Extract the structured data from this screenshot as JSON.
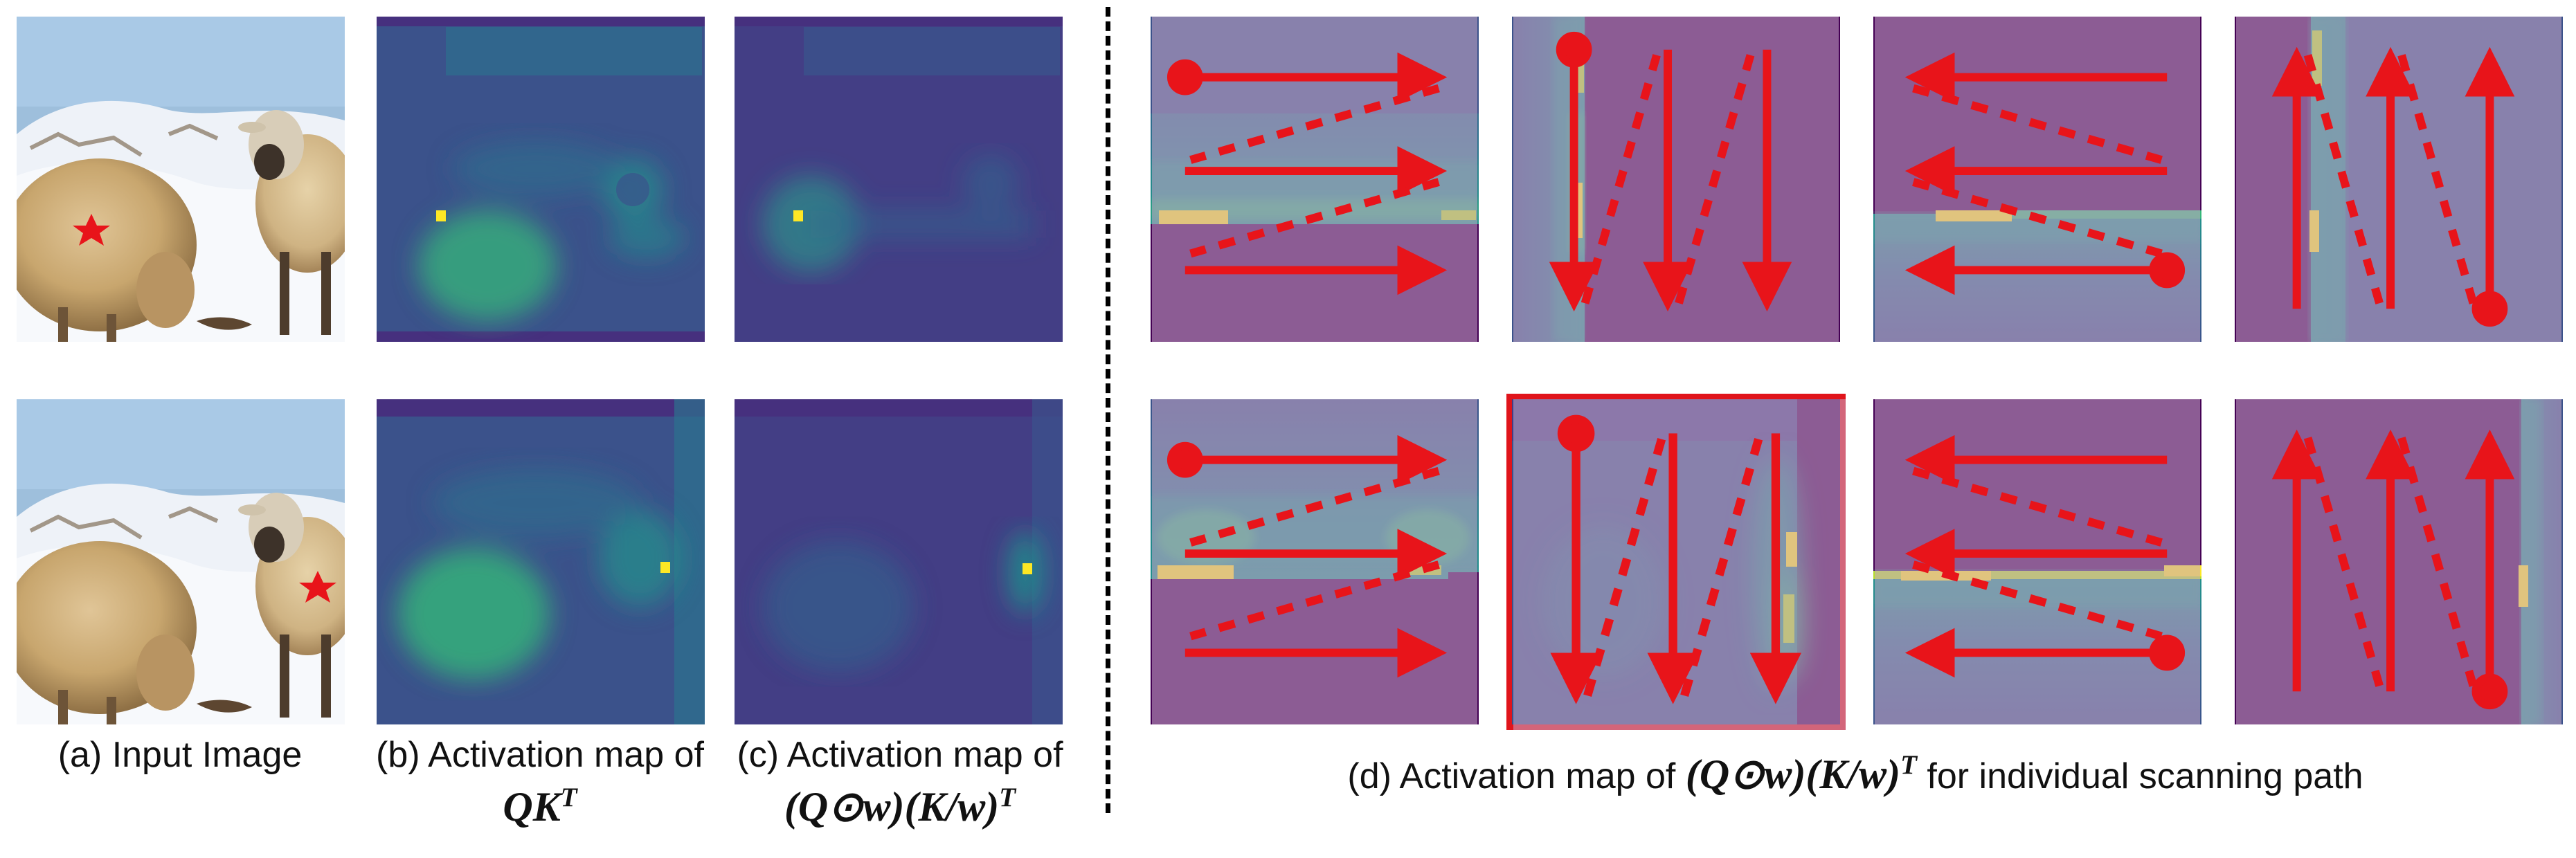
{
  "colors": {
    "viridis_bg": "#440154",
    "viridis_mid": "#31688e",
    "viridis_high": "#35b779",
    "viridis_peak": "#fde725",
    "highlight_border": "#e0141b",
    "star": "#e8141a",
    "scan_arrow": "#e8141a"
  },
  "captions": {
    "a": "(a) Input Image",
    "b_line1": "(b) Activation map of",
    "b_math": "QK^T",
    "c_line1": "(c) Activation map of",
    "c_math": "(Q⊙w)(K/w)^T",
    "d_prefix": "(d) Activation map of",
    "d_math": "(Q⊙w)(K/w)^T",
    "d_suffix": "for individual scanning path"
  },
  "scan_paths": [
    {
      "row": 1,
      "col": 1,
      "icon": "horizontal-forward-scan-icon",
      "highlighted": false
    },
    {
      "row": 1,
      "col": 2,
      "icon": "vertical-forward-scan-icon",
      "highlighted": false
    },
    {
      "row": 1,
      "col": 3,
      "icon": "horizontal-backward-scan-icon",
      "highlighted": false
    },
    {
      "row": 1,
      "col": 4,
      "icon": "vertical-backward-scan-icon",
      "highlighted": false
    },
    {
      "row": 2,
      "col": 1,
      "icon": "horizontal-forward-scan-icon",
      "highlighted": false
    },
    {
      "row": 2,
      "col": 2,
      "icon": "vertical-forward-scan-icon",
      "highlighted": true
    },
    {
      "row": 2,
      "col": 3,
      "icon": "horizontal-backward-scan-icon",
      "highlighted": false
    },
    {
      "row": 2,
      "col": 4,
      "icon": "vertical-backward-scan-icon",
      "highlighted": false
    }
  ]
}
